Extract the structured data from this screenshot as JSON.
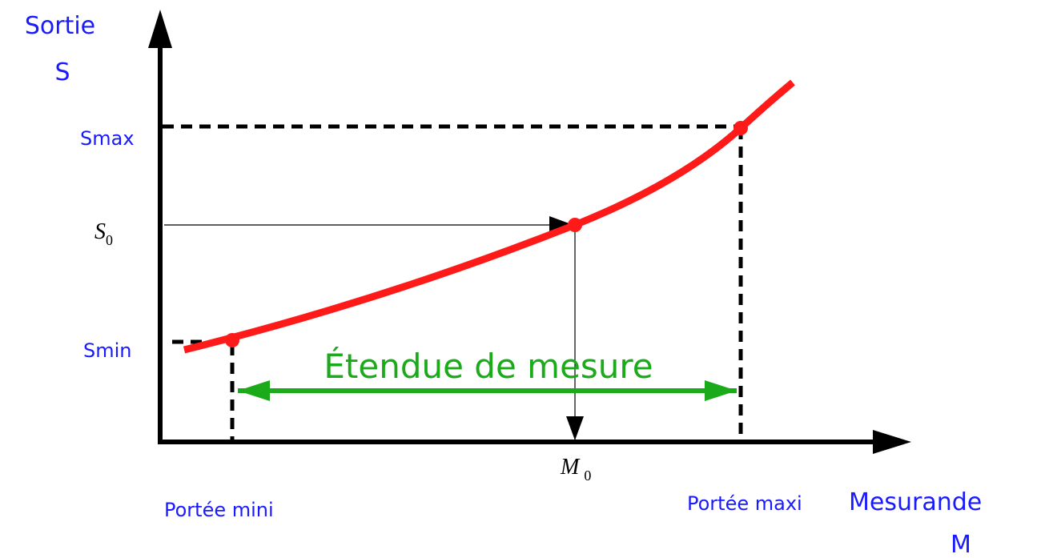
{
  "labels": {
    "y_axis": "Sortie",
    "y_axis_symbol": "S",
    "smax": "Smax",
    "s0": {
      "symbol": "S",
      "subscript": "0"
    },
    "smin": "Smin",
    "range": "Étendue de mesure",
    "m0": {
      "symbol": "M",
      "subscript": "0"
    },
    "min_span": "Portée mini",
    "max_span": "Portée maxi",
    "x_axis": "Mesurande",
    "x_axis_symbol": "M"
  }
}
